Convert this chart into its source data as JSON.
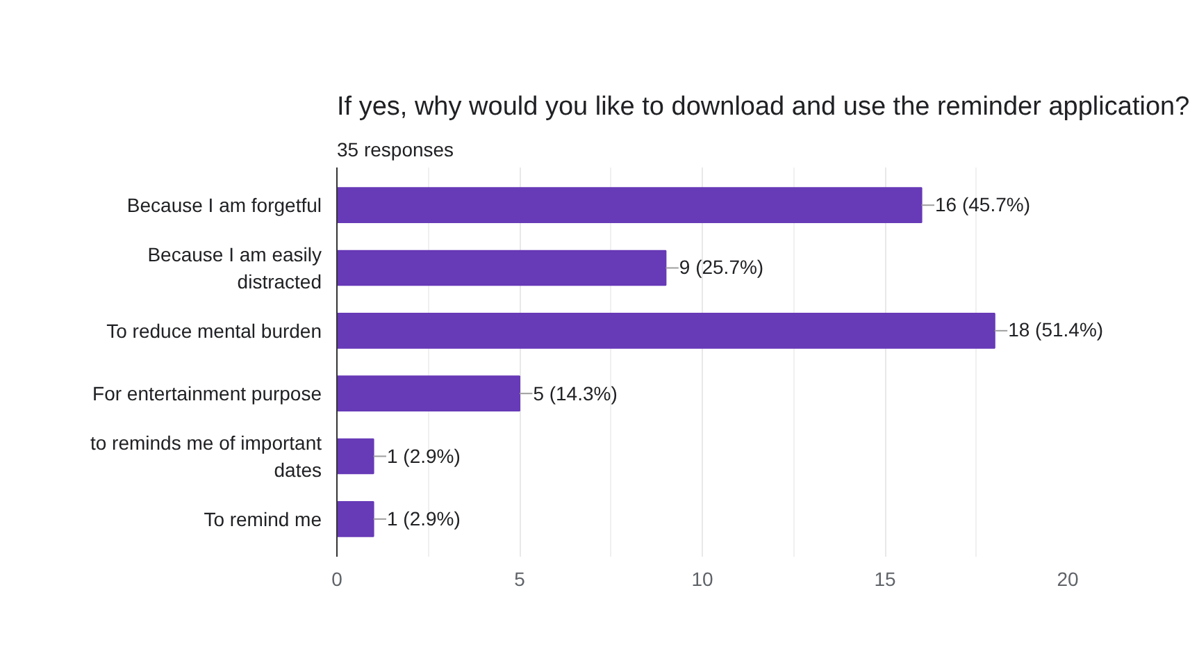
{
  "chart_data": {
    "type": "bar",
    "orientation": "horizontal",
    "title": "If yes, why would you like to download and use the reminder application?",
    "subtitle": "35 responses",
    "categories": [
      "Because I am forgetful",
      "Because I am easily distracted",
      "To reduce mental burden",
      "For entertainment purpose",
      "to reminds me of important dates",
      "To remind me"
    ],
    "values": [
      16,
      9,
      18,
      5,
      1,
      1
    ],
    "value_labels": [
      "16 (45.7%)",
      "9 (25.7%)",
      "18 (51.4%)",
      "5 (14.3%)",
      "1 (2.9%)",
      "1 (2.9%)"
    ],
    "color": "#673ab7",
    "xlim": [
      0,
      20
    ],
    "xticks": [
      0,
      5,
      10,
      15,
      20
    ],
    "grid": "x"
  }
}
